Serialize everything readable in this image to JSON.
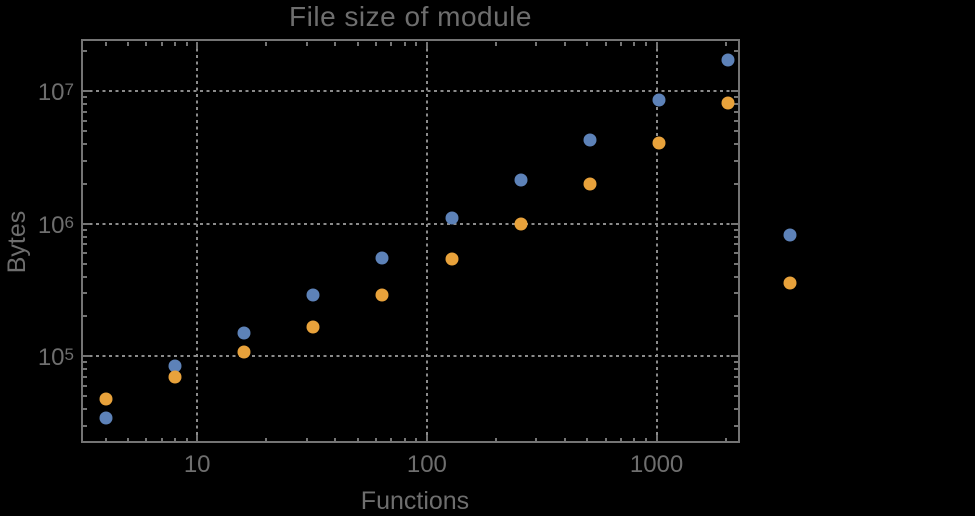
{
  "figure": {
    "background_color": "#000000"
  },
  "chart_data": {
    "type": "scatter",
    "title": "File size of module",
    "xlabel": "Functions",
    "ylabel": "Bytes",
    "xscale": "log",
    "yscale": "log",
    "xlim": [
      3.12,
      2307
    ],
    "ylim": [
      22000,
      24570000
    ],
    "grid": "dotted gridlines at major ticks",
    "legend": null,
    "x_ticks": [
      10,
      100,
      1000
    ],
    "x_tick_labels": [
      "10",
      "100",
      "1000"
    ],
    "y_ticks": [
      100000,
      1000000,
      10000000
    ],
    "y_tick_labels": [
      {
        "base": "10",
        "exp": "5"
      },
      {
        "base": "10",
        "exp": "6"
      },
      {
        "base": "10",
        "exp": "7"
      }
    ],
    "series": [
      {
        "name": "blue",
        "color": "#5d82b8",
        "marker": "circle",
        "points": [
          [
            4,
            34000
          ],
          [
            8,
            85000
          ],
          [
            16,
            150000
          ],
          [
            32,
            290000
          ],
          [
            64,
            555000
          ],
          [
            128,
            1100000
          ],
          [
            256,
            2150000
          ],
          [
            512,
            4300000
          ],
          [
            1024,
            8600000
          ],
          [
            2048,
            17300000
          ],
          [
            3800,
            830000
          ]
        ]
      },
      {
        "name": "orange",
        "color": "#e8a23b",
        "marker": "circle",
        "points": [
          [
            4,
            48000
          ],
          [
            8,
            70000
          ],
          [
            16,
            107000
          ],
          [
            32,
            167000
          ],
          [
            64,
            290000
          ],
          [
            128,
            545000
          ],
          [
            256,
            1000000
          ],
          [
            512,
            2000000
          ],
          [
            1024,
            4050000
          ],
          [
            2048,
            8100000
          ],
          [
            3800,
            360000
          ]
        ]
      }
    ],
    "colors": {
      "frame": "#747474",
      "grid": "#8b8b8b",
      "text": "#6e6e6e"
    }
  }
}
